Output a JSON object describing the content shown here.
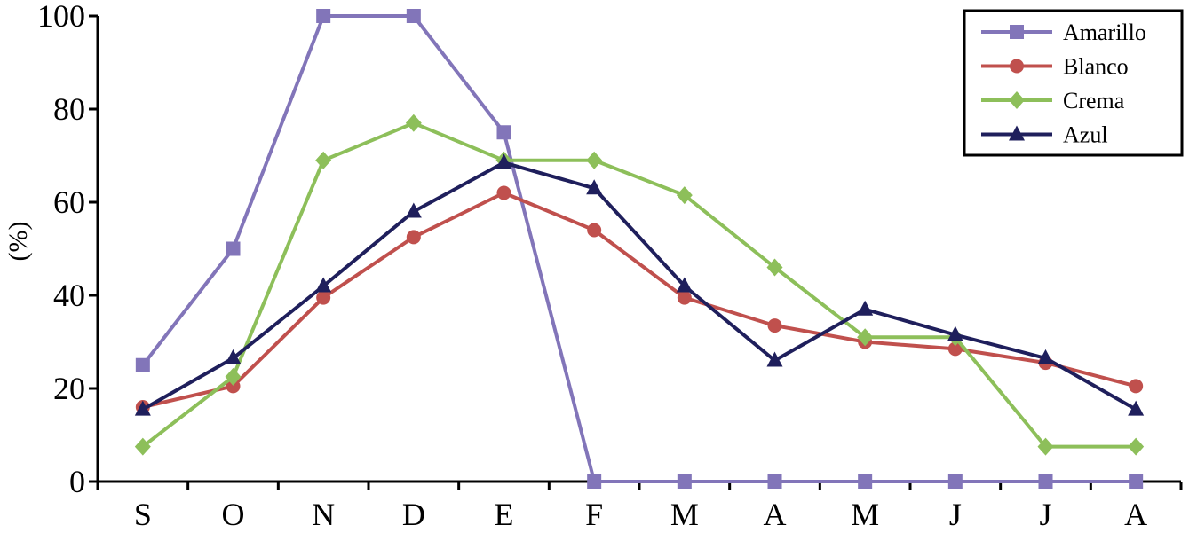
{
  "chart_data": {
    "type": "line",
    "title": "",
    "xlabel": "",
    "ylabel": "(%)",
    "categories": [
      "S",
      "O",
      "N",
      "D",
      "E",
      "F",
      "M",
      "A",
      "M",
      "J",
      "J",
      "A"
    ],
    "ylim": [
      0,
      100
    ],
    "yticks": [
      0,
      20,
      40,
      60,
      80,
      100
    ],
    "ytick_labels": [
      "0",
      "20",
      "40",
      "60",
      "80",
      "100"
    ],
    "grid": false,
    "legend_position": "top-right",
    "series": [
      {
        "name": "Amarillo",
        "color": "#8275B9",
        "marker": "square",
        "values": [
          25,
          50,
          100,
          100,
          75,
          0,
          0,
          0,
          0,
          0,
          0,
          0
        ]
      },
      {
        "name": "Blanco",
        "color": "#C0504D",
        "marker": "circle",
        "values": [
          16,
          20.5,
          39.5,
          52.5,
          62,
          54,
          39.5,
          33.5,
          30,
          28.5,
          25.5,
          20.5
        ]
      },
      {
        "name": "Crema",
        "color": "#8DBF5A",
        "marker": "diamond",
        "values": [
          7.5,
          22.5,
          69,
          77,
          69,
          69,
          61.5,
          46,
          31,
          31,
          7.5,
          7.5
        ]
      },
      {
        "name": "Azul",
        "color": "#1F1F5C",
        "marker": "triangle",
        "values": [
          15.5,
          26.5,
          42,
          58,
          68.5,
          63,
          42,
          26,
          37,
          31.5,
          26.5,
          15.5
        ]
      }
    ]
  }
}
